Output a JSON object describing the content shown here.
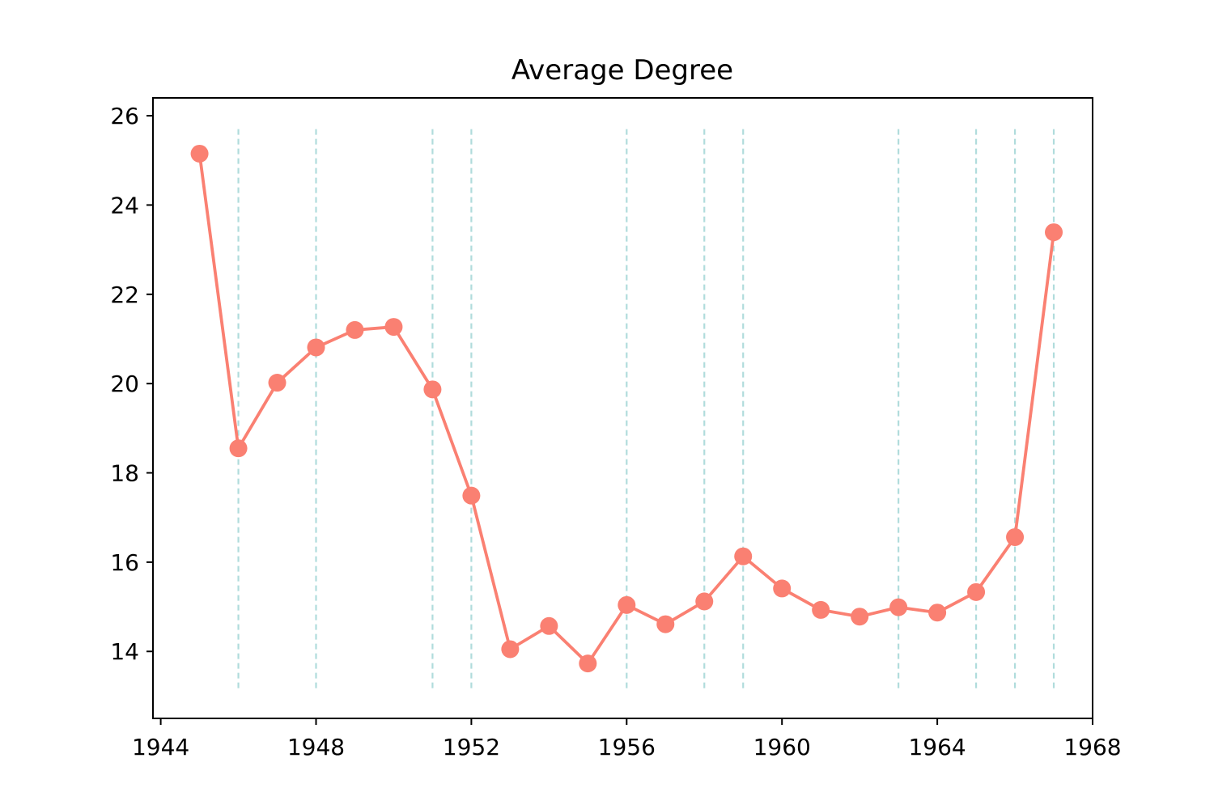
{
  "chart_data": {
    "type": "line",
    "title": "Average Degree",
    "xlabel": "",
    "ylabel": "",
    "xlim": [
      1943.8,
      1968.0
    ],
    "ylim": [
      12.5,
      26.4
    ],
    "xticks": [
      1944,
      1948,
      1952,
      1956,
      1960,
      1964,
      1968
    ],
    "yticks": [
      14,
      16,
      18,
      20,
      22,
      24,
      26
    ],
    "grid": false,
    "series": [
      {
        "color": "#fa8072",
        "x": [
          1945,
          1946,
          1947,
          1948,
          1949,
          1950,
          1951,
          1952,
          1953,
          1954,
          1955,
          1956,
          1957,
          1958,
          1959,
          1960,
          1961,
          1962,
          1963,
          1964,
          1965,
          1966,
          1967
        ],
        "values": [
          25.15,
          18.55,
          20.02,
          20.81,
          21.2,
          21.27,
          19.87,
          17.49,
          14.05,
          14.57,
          13.73,
          15.04,
          14.61,
          15.12,
          16.13,
          15.41,
          14.93,
          14.78,
          14.99,
          14.87,
          15.33,
          16.56,
          23.39
        ]
      }
    ],
    "vlines": {
      "color": "#b0dcdc",
      "style": "dashed",
      "ymin": 13.15,
      "ymax": 25.7,
      "x": [
        1946,
        1948,
        1951,
        1952,
        1956,
        1958,
        1959,
        1963,
        1965,
        1966,
        1967
      ]
    }
  }
}
